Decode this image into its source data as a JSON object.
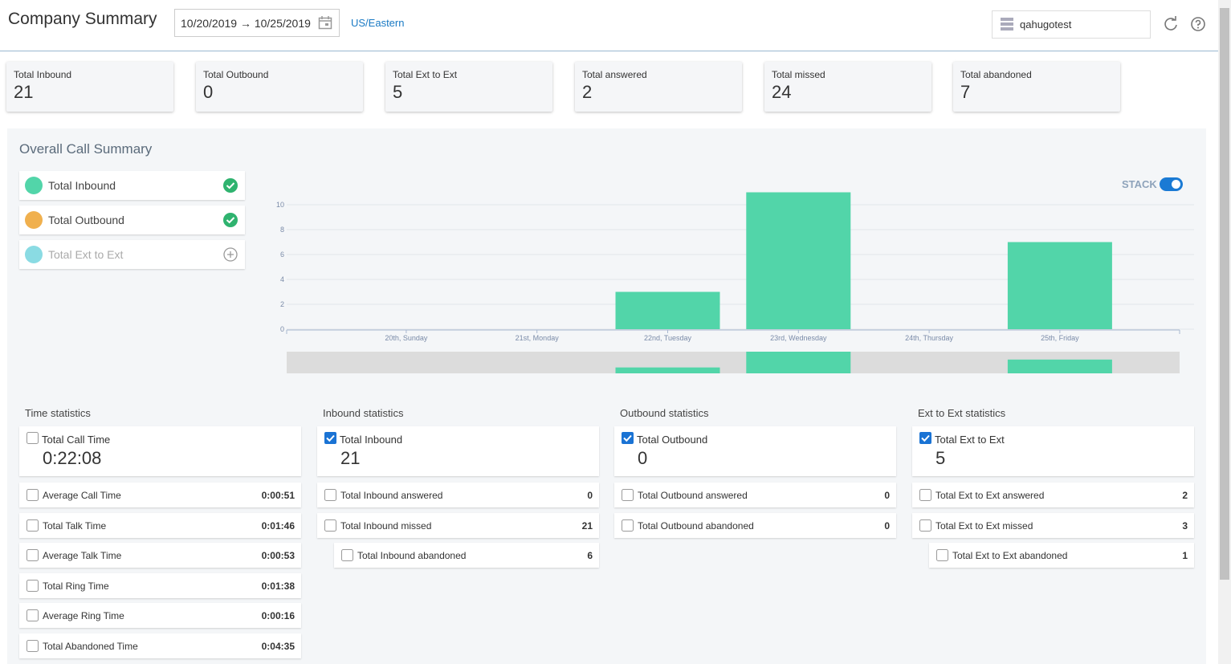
{
  "header": {
    "title": "Company Summary",
    "date_range": "10/20/2019 → 10/25/2019",
    "timezone": "US/Eastern",
    "account": "qahugotest"
  },
  "summary_cards": [
    {
      "label": "Total Inbound",
      "value": 21
    },
    {
      "label": "Total Outbound",
      "value": 0
    },
    {
      "label": "Total Ext to Ext",
      "value": 5
    },
    {
      "label": "Total answered",
      "value": 2
    },
    {
      "label": "Total missed",
      "value": 24
    },
    {
      "label": "Total abandoned",
      "value": 7
    }
  ],
  "call_summary": {
    "title": "Overall Call Summary",
    "stack_label": "STACK",
    "stack": true
  },
  "chart_data": {
    "type": "bar",
    "stacked": true,
    "grid": true,
    "categories": [
      "20th, Sunday",
      "21st, Monday",
      "22nd, Tuesday",
      "23rd, Wednesday",
      "24th, Thursday",
      "25th, Friday"
    ],
    "series": [
      {
        "name": "Total Inbound",
        "color": "#52d5a9",
        "visible": true,
        "values": [
          0,
          0,
          3,
          11,
          0,
          7
        ]
      },
      {
        "name": "Total Outbound",
        "color": "#f0b04e",
        "visible": true,
        "values": [
          0,
          0,
          0,
          0,
          0,
          0
        ]
      },
      {
        "name": "Total Ext to Ext",
        "color": "#8adbe3",
        "visible": false
      }
    ],
    "ylim": [
      0,
      11
    ],
    "yticks": [
      0,
      2,
      4,
      6,
      8,
      10
    ]
  },
  "statistics": [
    {
      "title": "Time statistics",
      "main": {
        "label": "Total Call Time",
        "value": "0:22:08",
        "checked": false
      },
      "rows": [
        {
          "label": "Average Call Time",
          "value": "0:00:51"
        },
        {
          "label": "Total Talk Time",
          "value": "0:01:46"
        },
        {
          "label": "Average Talk Time",
          "value": "0:00:53"
        },
        {
          "label": "Total Ring Time",
          "value": "0:01:38"
        },
        {
          "label": "Average Ring Time",
          "value": "0:00:16"
        },
        {
          "label": "Total Abandoned Time",
          "value": "0:04:35"
        }
      ]
    },
    {
      "title": "Inbound statistics",
      "main": {
        "label": "Total Inbound",
        "value": 21,
        "checked": true
      },
      "rows": [
        {
          "label": "Total Inbound answered",
          "value": 0
        },
        {
          "label": "Total Inbound missed",
          "value": 21
        },
        {
          "label": "Total Inbound abandoned",
          "value": 6,
          "indent": true
        }
      ]
    },
    {
      "title": "Outbound statistics",
      "main": {
        "label": "Total Outbound",
        "value": 0,
        "checked": true
      },
      "rows": [
        {
          "label": "Total Outbound answered",
          "value": 0
        },
        {
          "label": "Total Outbound abandoned",
          "value": 0
        }
      ]
    },
    {
      "title": "Ext to Ext statistics",
      "main": {
        "label": "Total Ext to Ext",
        "value": 5,
        "checked": true
      },
      "rows": [
        {
          "label": "Total Ext to Ext answered",
          "value": 2
        },
        {
          "label": "Total Ext to Ext missed",
          "value": 3
        },
        {
          "label": "Total Ext to Ext abandoned",
          "value": 1,
          "indent": true
        }
      ]
    }
  ]
}
